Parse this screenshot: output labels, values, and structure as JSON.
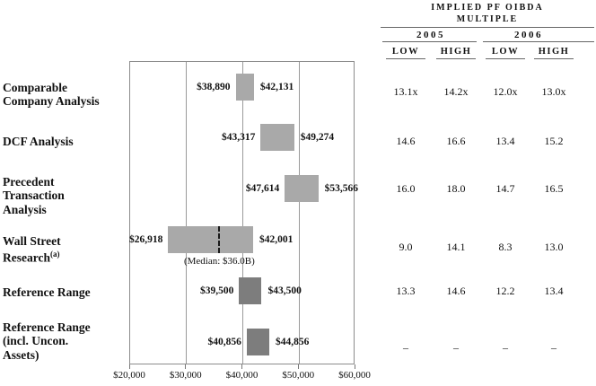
{
  "table": {
    "title_line1": "IMPLIED PF OIBDA",
    "title_line2": "MULTIPLE",
    "years": [
      "2005",
      "2006"
    ],
    "col_headers": [
      "LOW",
      "HIGH",
      "LOW",
      "HIGH"
    ],
    "rows": [
      [
        "13.1x",
        "14.2x",
        "12.0x",
        "13.0x"
      ],
      [
        "14.6",
        "16.6",
        "13.4",
        "15.2"
      ],
      [
        "16.0",
        "18.0",
        "14.7",
        "16.5"
      ],
      [
        "9.0",
        "14.1",
        "8.3",
        "13.0"
      ],
      [
        "13.3",
        "14.6",
        "12.2",
        "13.4"
      ],
      [
        "–",
        "–",
        "–",
        "–"
      ]
    ]
  },
  "chart_data": {
    "type": "bar",
    "orientation": "horizontal-range",
    "title": "",
    "xlabel": "",
    "xlim": [
      20000,
      60000
    ],
    "x_tick_values": [
      20000,
      30000,
      40000,
      50000,
      60000
    ],
    "x_tick_labels": [
      "$20,000",
      "$30,000",
      "$40,000",
      "$50,000",
      "$60,000"
    ],
    "grid": true,
    "bar_colors": {
      "light": "#a9a9a9",
      "dark": "#7d7d7d"
    },
    "rows": [
      {
        "label_lines": [
          "Comparable",
          "Company Analysis"
        ],
        "low": 38890,
        "high": 42131,
        "low_label": "$38,890",
        "high_label": "$42,131",
        "shade": "light"
      },
      {
        "label_lines": [
          "DCF Analysis"
        ],
        "low": 43317,
        "high": 49274,
        "low_label": "$43,317",
        "high_label": "$49,274",
        "shade": "light"
      },
      {
        "label_lines": [
          "Precedent",
          "Transaction",
          "Analysis"
        ],
        "low": 47614,
        "high": 53566,
        "low_label": "$47,614",
        "high_label": "$53,566",
        "shade": "light"
      },
      {
        "label_lines": [
          "Wall Street",
          "Research"
        ],
        "superscript": "(a)",
        "low": 26918,
        "high": 42001,
        "low_label": "$26,918",
        "high_label": "$42,001",
        "median": 36000,
        "median_label": "(Median: $36.0B)",
        "shade": "light"
      },
      {
        "label_lines": [
          "Reference Range"
        ],
        "low": 39500,
        "high": 43500,
        "low_label": "$39,500",
        "high_label": "$43,500",
        "shade": "dark"
      },
      {
        "label_lines": [
          "Reference Range",
          "(incl. Uncon.",
          "Assets)"
        ],
        "low": 40856,
        "high": 44856,
        "low_label": "$40,856",
        "high_label": "$44,856",
        "shade": "dark"
      }
    ]
  }
}
